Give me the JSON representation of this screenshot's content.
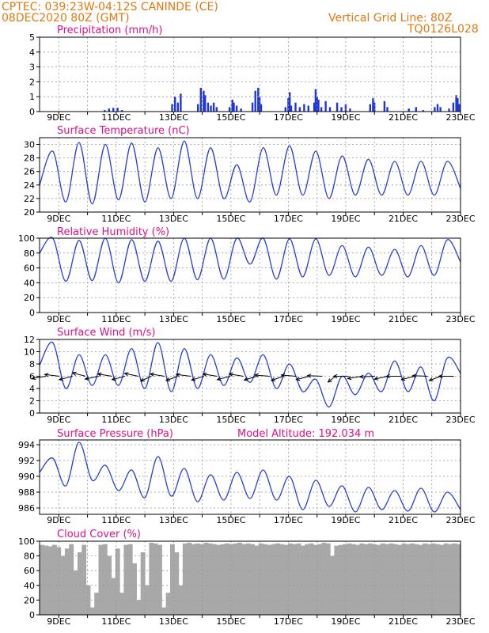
{
  "header": {
    "line1": "CPTEC:    039:23W-04:12S   CANINDE (CE)",
    "line2": "08DEC2020 80Z (GMT)",
    "grid_note": "Vertical Grid Line: 80Z",
    "code": "TQ0126L028"
  },
  "colors": {
    "header": "#e07a10",
    "title": "#e0108a",
    "line": "#2a3ed8",
    "bar": "#1f37d8",
    "cloud": "#a8a8a8",
    "grid": "#9a9a9a"
  },
  "x_axis": {
    "labels": [
      "9DEC",
      "11DEC",
      "13DEC",
      "15DEC",
      "17DEC",
      "19DEC",
      "21DEC",
      "23DEC"
    ],
    "start_day": 8.33,
    "end_day": 23.0
  },
  "chart_data": [
    {
      "type": "bar",
      "title": "Precipitation (mm/h)",
      "ylim": [
        0,
        5
      ],
      "yticks": [
        "0",
        "1",
        "2",
        "3",
        "4",
        "5"
      ],
      "grid": true,
      "series": [
        {
          "values": [
            [
              10.6,
              0.1
            ],
            [
              10.75,
              0.2
            ],
            [
              10.9,
              0.25
            ],
            [
              11.05,
              0.25
            ],
            [
              11.2,
              0.1
            ],
            [
              12.95,
              0.5
            ],
            [
              13.05,
              1.0
            ],
            [
              13.15,
              0.6
            ],
            [
              13.25,
              1.2
            ],
            [
              13.85,
              0.5
            ],
            [
              13.95,
              1.6
            ],
            [
              14.05,
              1.4
            ],
            [
              14.1,
              1.1
            ],
            [
              14.2,
              0.6
            ],
            [
              14.3,
              0.4
            ],
            [
              14.4,
              0.6
            ],
            [
              14.5,
              0.3
            ],
            [
              14.95,
              0.3
            ],
            [
              15.05,
              0.8
            ],
            [
              15.1,
              0.6
            ],
            [
              15.2,
              0.4
            ],
            [
              15.35,
              0.2
            ],
            [
              15.75,
              0.6
            ],
            [
              15.85,
              1.4
            ],
            [
              15.95,
              1.6
            ],
            [
              16.0,
              1.0
            ],
            [
              16.05,
              0.5
            ],
            [
              16.9,
              0.3
            ],
            [
              17.0,
              0.9
            ],
            [
              17.05,
              1.3
            ],
            [
              17.1,
              0.4
            ],
            [
              17.25,
              0.6
            ],
            [
              17.4,
              0.3
            ],
            [
              17.55,
              0.5
            ],
            [
              17.7,
              0.4
            ],
            [
              17.9,
              0.6
            ],
            [
              17.95,
              1.5
            ],
            [
              18.0,
              1.0
            ],
            [
              18.05,
              0.8
            ],
            [
              18.15,
              0.3
            ],
            [
              18.3,
              0.7
            ],
            [
              18.45,
              0.3
            ],
            [
              18.7,
              0.6
            ],
            [
              18.85,
              0.3
            ],
            [
              19.0,
              0.5
            ],
            [
              19.15,
              0.2
            ],
            [
              19.85,
              0.5
            ],
            [
              19.95,
              0.9
            ],
            [
              20.0,
              0.6
            ],
            [
              20.35,
              0.7
            ],
            [
              20.45,
              0.3
            ],
            [
              21.2,
              0.2
            ],
            [
              21.45,
              0.3
            ],
            [
              21.7,
              0.1
            ],
            [
              22.1,
              0.3
            ],
            [
              22.2,
              0.5
            ],
            [
              22.3,
              0.3
            ],
            [
              22.6,
              0.2
            ],
            [
              22.75,
              0.6
            ],
            [
              22.85,
              1.1
            ],
            [
              22.9,
              0.9
            ],
            [
              22.95,
              0.5
            ]
          ]
        }
      ]
    },
    {
      "type": "line",
      "title": "Surface Temperature (nC)",
      "ylim": [
        20,
        31
      ],
      "yticks": [
        "20",
        "22",
        "24",
        "26",
        "28",
        "30"
      ],
      "grid": true,
      "series": [
        {
          "values": [
            24.0,
            29.0,
            21.5,
            30.3,
            21.2,
            30.0,
            21.8,
            30.2,
            21.5,
            29.5,
            22.0,
            30.5,
            22.0,
            29.5,
            22.0,
            27.0,
            21.5,
            29.5,
            22.5,
            29.8,
            22.5,
            29.0,
            22.0,
            28.3,
            22.5,
            27.8,
            22.5,
            27.5,
            22.5,
            27.5,
            22.5,
            27.5,
            23.5
          ]
        }
      ]
    },
    {
      "type": "line",
      "title": "Relative Humidity (%)",
      "ylim": [
        0,
        100
      ],
      "yticks": [
        "0",
        "20",
        "40",
        "60",
        "80",
        "100"
      ],
      "grid": true,
      "series": [
        {
          "values": [
            80,
            100,
            42,
            97,
            43,
            100,
            40,
            98,
            42,
            96,
            42,
            100,
            44,
            100,
            45,
            100,
            65,
            100,
            45,
            99,
            48,
            99,
            50,
            90,
            48,
            88,
            50,
            85,
            48,
            90,
            50,
            98,
            68
          ]
        }
      ]
    },
    {
      "type": "line",
      "title": "Surface Wind (m/s)",
      "ylim": [
        0,
        12
      ],
      "yticks": [
        "0",
        "2",
        "4",
        "6",
        "8",
        "10",
        "12"
      ],
      "grid": true,
      "series": [
        {
          "values": [
            7.8,
            11.5,
            4.0,
            9.5,
            4.5,
            9.5,
            4.5,
            10.5,
            4.0,
            11.5,
            3.5,
            10.5,
            4.0,
            9.5,
            4.5,
            9.0,
            5.0,
            9.5,
            4.0,
            8.0,
            3.5,
            5.5,
            1.0,
            6.0,
            3.0,
            6.5,
            3.5,
            8.5,
            3.5,
            7.5,
            2.0,
            9.0,
            6.5
          ]
        }
      ],
      "wind_vectors": [
        -160,
        165,
        -150,
        150,
        -155,
        160,
        -150,
        155,
        -135,
        160,
        -140,
        165,
        -145,
        160,
        -150,
        160,
        -145,
        170,
        -140,
        170,
        -150,
        175,
        -120,
        180,
        -160,
        185,
        -155,
        180,
        -150,
        175,
        -140,
        180,
        -135
      ]
    },
    {
      "type": "line",
      "title": "Surface Pressure (hPa)",
      "annotation": "Model Altitude: 192.034 m",
      "ylim": [
        985.2,
        994.6
      ],
      "yticks": [
        "986",
        "988",
        "990",
        "992",
        "994"
      ],
      "grid": true,
      "series": [
        {
          "values": [
            990.5,
            992.3,
            988.8,
            994.3,
            989.5,
            991.4,
            988.2,
            990.8,
            987.3,
            992.5,
            987.5,
            991.0,
            986.8,
            990.2,
            987.0,
            990.5,
            987.2,
            990.8,
            987.0,
            990.0,
            985.8,
            989.5,
            986.2,
            988.8,
            985.5,
            988.6,
            985.8,
            988.2,
            985.6,
            988.5,
            985.5,
            988.0,
            985.8
          ]
        }
      ]
    },
    {
      "type": "area",
      "title": "Cloud Cover (%)",
      "ylim": [
        0,
        100
      ],
      "yticks": [
        "0",
        "20",
        "40",
        "60",
        "80",
        "100"
      ],
      "grid": true,
      "series": [
        {
          "values": [
            95,
            94,
            93,
            95,
            92,
            80,
            90,
            96,
            60,
            85,
            95,
            40,
            10,
            30,
            95,
            96,
            80,
            50,
            90,
            30,
            95,
            96,
            70,
            20,
            85,
            40,
            98,
            97,
            95,
            10,
            30,
            96,
            85,
            40,
            97,
            98,
            96,
            97,
            96,
            98,
            97,
            96,
            95,
            96,
            97,
            96,
            97,
            98,
            96,
            97,
            96,
            94,
            97,
            96,
            95,
            96,
            97,
            96,
            95,
            97,
            96,
            97,
            94,
            96,
            97,
            95,
            96,
            98,
            97,
            80,
            94,
            95,
            96,
            97,
            96,
            95,
            97,
            96,
            97,
            96,
            95,
            97,
            96,
            97,
            96,
            95,
            97,
            96,
            97,
            96,
            95,
            97,
            96,
            97,
            96,
            95,
            97,
            96,
            97,
            96
          ]
        }
      ]
    }
  ]
}
